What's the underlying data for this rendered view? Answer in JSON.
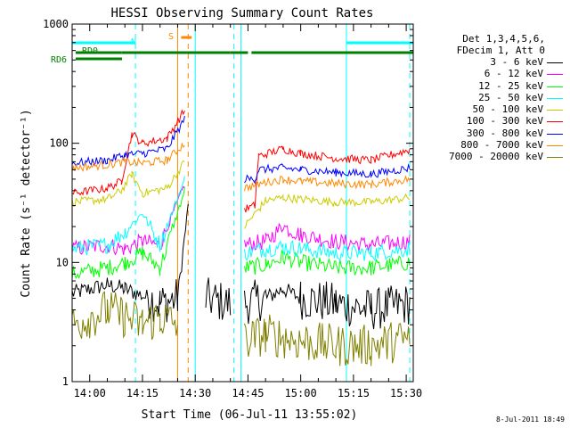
{
  "chart_data": {
    "type": "line",
    "title": "HESSI Observing Summary Count Rates",
    "xlabel": "Start Time (06-Jul-11 13:55:02)",
    "ylabel": "Count Rate (s⁻¹ detector⁻¹)",
    "y_scale": "log",
    "ylim": [
      1,
      1000
    ],
    "xlim": [
      "13:55",
      "15:32"
    ],
    "x_ticks": [
      "14:00",
      "14:15",
      "14:30",
      "14:45",
      "15:00",
      "15:15",
      "15:30"
    ],
    "y_ticks": [
      "1",
      "10",
      "100",
      "1000"
    ],
    "legend_header": [
      "Det 1,3,4,5,6,",
      "FDecim 1, Att 0"
    ],
    "legend_position": "right",
    "series": [
      {
        "name": "3 - 6 keV",
        "color": "#000000",
        "points": [
          [
            "13:55",
            5.5
          ],
          [
            "14:05",
            6.5
          ],
          [
            "14:10",
            6
          ],
          [
            "14:17",
            5
          ],
          [
            "14:20",
            4.5
          ],
          [
            "14:25",
            5
          ],
          [
            "14:28",
            30
          ],
          [
            "14:30",
            null
          ],
          [
            "14:33",
            5
          ],
          [
            "14:40",
            4.5
          ],
          [
            "14:43",
            null
          ],
          [
            "14:44",
            4.5
          ],
          [
            "14:50",
            5
          ],
          [
            "14:55",
            6
          ],
          [
            "15:00",
            5
          ],
          [
            "15:10",
            4.5
          ],
          [
            "15:20",
            4
          ],
          [
            "15:31",
            4.5
          ]
        ]
      },
      {
        "name": "6 - 12 keV",
        "color": "#ff00ff",
        "points": [
          [
            "13:55",
            13
          ],
          [
            "14:05",
            14
          ],
          [
            "14:10",
            13
          ],
          [
            "14:15",
            15
          ],
          [
            "14:20",
            14
          ],
          [
            "14:27",
            45
          ],
          [
            "14:30",
            null
          ],
          [
            "14:33",
            14
          ],
          [
            "14:43",
            null
          ],
          [
            "14:44",
            14
          ],
          [
            "14:50",
            15
          ],
          [
            "14:55",
            20
          ],
          [
            "15:00",
            17
          ],
          [
            "15:10",
            15
          ],
          [
            "15:20",
            14
          ],
          [
            "15:31",
            15
          ]
        ]
      },
      {
        "name": "12 - 25 keV",
        "color": "#00ff00",
        "points": [
          [
            "13:55",
            8
          ],
          [
            "14:05",
            9
          ],
          [
            "14:10",
            10
          ],
          [
            "14:15",
            12
          ],
          [
            "14:20",
            9
          ],
          [
            "14:27",
            40
          ],
          [
            "14:30",
            null
          ],
          [
            "14:33",
            9.5
          ],
          [
            "14:43",
            null
          ],
          [
            "14:44",
            9
          ],
          [
            "14:50",
            9.5
          ],
          [
            "14:55",
            11
          ],
          [
            "15:00",
            10
          ],
          [
            "15:10",
            9
          ],
          [
            "15:20",
            9
          ],
          [
            "15:31",
            10
          ]
        ]
      },
      {
        "name": "25 - 50 keV",
        "color": "#00ffff",
        "points": [
          [
            "13:55",
            13
          ],
          [
            "14:05",
            14
          ],
          [
            "14:10",
            18
          ],
          [
            "14:15",
            26
          ],
          [
            "14:20",
            14
          ],
          [
            "14:27",
            50
          ],
          [
            "14:30",
            null
          ],
          [
            "14:33",
            13
          ],
          [
            "14:43",
            null
          ],
          [
            "14:44",
            12
          ],
          [
            "14:50",
            13
          ],
          [
            "14:55",
            13.5
          ],
          [
            "15:00",
            13
          ],
          [
            "15:10",
            12
          ],
          [
            "15:20",
            12
          ],
          [
            "15:31",
            13
          ]
        ]
      },
      {
        "name": "50 - 100 keV",
        "color": "#cccc00",
        "points": [
          [
            "13:55",
            32
          ],
          [
            "14:05",
            34
          ],
          [
            "14:09",
            40
          ],
          [
            "14:12",
            55
          ],
          [
            "14:15",
            38
          ],
          [
            "14:22",
            42
          ],
          [
            "14:27",
            70
          ],
          [
            "14:30",
            null
          ],
          [
            "14:33",
            33
          ],
          [
            "14:43",
            null
          ],
          [
            "14:44",
            20
          ],
          [
            "14:50",
            33
          ],
          [
            "14:55",
            35
          ],
          [
            "15:00",
            34
          ],
          [
            "15:10",
            32
          ],
          [
            "15:20",
            32
          ],
          [
            "15:31",
            35
          ]
        ]
      },
      {
        "name": "100 - 300 keV",
        "color": "#ff0000",
        "points": [
          [
            "13:55",
            38
          ],
          [
            "14:05",
            42
          ],
          [
            "14:09",
            48
          ],
          [
            "14:12",
            120
          ],
          [
            "14:15",
            100
          ],
          [
            "14:22",
            110
          ],
          [
            "14:27",
            190
          ],
          [
            "14:30",
            null
          ],
          [
            "14:33",
            78
          ],
          [
            "14:43",
            null
          ],
          [
            "14:44",
            28
          ],
          [
            "14:47",
            30
          ],
          [
            "14:48",
            78
          ],
          [
            "14:55",
            90
          ],
          [
            "15:00",
            82
          ],
          [
            "15:10",
            75
          ],
          [
            "15:20",
            72
          ],
          [
            "15:31",
            88
          ]
        ]
      },
      {
        "name": "300 - 800 keV",
        "color": "#0000ff",
        "points": [
          [
            "13:55",
            68
          ],
          [
            "14:05",
            72
          ],
          [
            "14:10",
            80
          ],
          [
            "14:15",
            82
          ],
          [
            "14:22",
            90
          ],
          [
            "14:27",
            160
          ],
          [
            "14:30",
            null
          ],
          [
            "14:33",
            56
          ],
          [
            "14:43",
            null
          ],
          [
            "14:44",
            50
          ],
          [
            "14:47",
            50
          ],
          [
            "14:48",
            60
          ],
          [
            "14:55",
            62
          ],
          [
            "15:00",
            60
          ],
          [
            "15:10",
            57
          ],
          [
            "15:20",
            55
          ],
          [
            "15:31",
            62
          ]
        ]
      },
      {
        "name": "800 - 7000 keV",
        "color": "#ff8800",
        "points": [
          [
            "13:55",
            62
          ],
          [
            "14:05",
            66
          ],
          [
            "14:10",
            70
          ],
          [
            "14:15",
            68
          ],
          [
            "14:22",
            72
          ],
          [
            "14:27",
            100
          ],
          [
            "14:30",
            null
          ],
          [
            "14:33",
            46
          ],
          [
            "14:43",
            null
          ],
          [
            "14:44",
            42
          ],
          [
            "14:50",
            47
          ],
          [
            "14:55",
            50
          ],
          [
            "15:00",
            48
          ],
          [
            "15:10",
            46
          ],
          [
            "15:20",
            45
          ],
          [
            "15:31",
            50
          ]
        ]
      },
      {
        "name": "7000 - 20000 keV",
        "color": "#808000",
        "points": [
          [
            "13:55",
            3
          ],
          [
            "14:05",
            4
          ],
          [
            "14:10",
            3.5
          ],
          [
            "14:15",
            3
          ],
          [
            "14:20",
            3.5
          ],
          [
            "14:25",
            3
          ],
          [
            "14:30",
            null
          ],
          [
            "14:33",
            2
          ],
          [
            "14:43",
            null
          ],
          [
            "14:44",
            2.2
          ],
          [
            "14:50",
            2.5
          ],
          [
            "15:00",
            2.2
          ],
          [
            "15:10",
            2
          ],
          [
            "15:20",
            2
          ],
          [
            "15:31",
            2.3
          ]
        ]
      }
    ],
    "annotations": [
      {
        "text": "N",
        "color": "#00ffff"
      },
      {
        "text": "S",
        "color": "#ff8800"
      },
      {
        "text": "RD0",
        "color": "#008000"
      },
      {
        "text": "RD6",
        "color": "#008000"
      }
    ],
    "flag_bars": {
      "N": [
        [
          "13:55",
          "14:13"
        ],
        [
          "15:13",
          "15:32"
        ]
      ],
      "S": [
        [
          "14:26",
          "14:29"
        ]
      ],
      "RD0": [
        [
          "13:56",
          "14:09"
        ],
        [
          "14:09",
          "14:40"
        ],
        [
          "14:40",
          "14:45"
        ],
        [
          "14:46",
          "15:32"
        ]
      ]
    },
    "vertical_lines": [
      {
        "time": "13:55",
        "color": "#00ffff",
        "style": "solid"
      },
      {
        "time": "14:13",
        "color": "#00ffff",
        "style": "dashed"
      },
      {
        "time": "14:25",
        "color": "#ff8800",
        "style": "solid"
      },
      {
        "time": "14:28",
        "color": "#ff8800",
        "style": "dashed"
      },
      {
        "time": "14:30",
        "color": "#00ffff",
        "style": "solid"
      },
      {
        "time": "14:41",
        "color": "#00ffff",
        "style": "dashed"
      },
      {
        "time": "14:43",
        "color": "#00ffff",
        "style": "solid"
      },
      {
        "time": "15:13",
        "color": "#00ffff",
        "style": "solid"
      },
      {
        "time": "15:31",
        "color": "#00ffff",
        "style": "dashed"
      }
    ],
    "timestamp": "8-Jul-2011 18:49"
  }
}
